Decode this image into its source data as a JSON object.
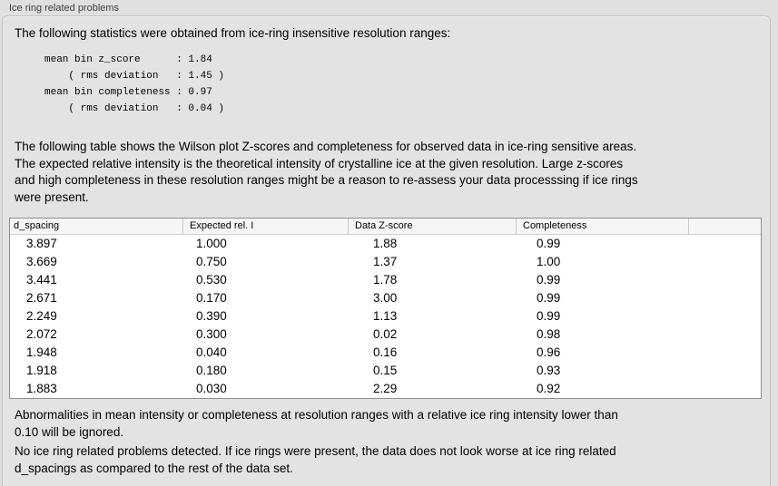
{
  "panel": {
    "group_title": "Ice ring related problems"
  },
  "stats_intro": "The following statistics were obtained from ice-ring insensitive resolution ranges:",
  "stats_block": {
    "lines": [
      "mean bin z_score      : 1.84",
      "    ( rms deviation   : 1.45 )",
      "mean bin completeness : 0.97",
      "    ( rms deviation   : 0.04 )"
    ]
  },
  "table_intro_lines": [
    "The following table shows the Wilson plot Z-scores and completeness for observed data in ice-ring sensitive areas.",
    "The expected relative intensity is the theoretical intensity of crystalline ice at the given resolution. Large z-scores",
    "and high completeness in these resolution ranges might be a reason to re-assess your data processsing if ice rings",
    "were present."
  ],
  "table": {
    "columns": [
      "d_spacing",
      "Expected rel. I",
      "Data Z-score",
      "Completeness",
      ""
    ],
    "rows": [
      [
        "3.897",
        "1.000",
        "1.88",
        "0.99",
        ""
      ],
      [
        "3.669",
        "0.750",
        "1.37",
        "1.00",
        ""
      ],
      [
        "3.441",
        "0.530",
        "1.78",
        "0.99",
        ""
      ],
      [
        "2.671",
        "0.170",
        "3.00",
        "0.99",
        ""
      ],
      [
        "2.249",
        "0.390",
        "1.13",
        "0.99",
        ""
      ],
      [
        "2.072",
        "0.300",
        "0.02",
        "0.98",
        ""
      ],
      [
        "1.948",
        "0.040",
        "0.16",
        "0.96",
        ""
      ],
      [
        "1.918",
        "0.180",
        "0.15",
        "0.93",
        ""
      ],
      [
        "1.883",
        "0.030",
        "2.29",
        "0.92",
        ""
      ]
    ]
  },
  "ignore_note_lines": [
    "Abnormalities in mean intensity or completeness at resolution ranges with a relative ice ring intensity lower than",
    "0.10 will be ignored."
  ],
  "conclusion_lines": [
    "No ice ring related problems detected. If ice rings were present, the data does not look worse at ice ring related",
    "d_spacings as compared to the rest of the data set."
  ],
  "colors": {
    "background": "#e0e0e0",
    "panel_background": "#e3e3e3",
    "table_background": "#ffffff",
    "table_border": "#8f8f8f",
    "header_background": "#f6f6f6"
  }
}
